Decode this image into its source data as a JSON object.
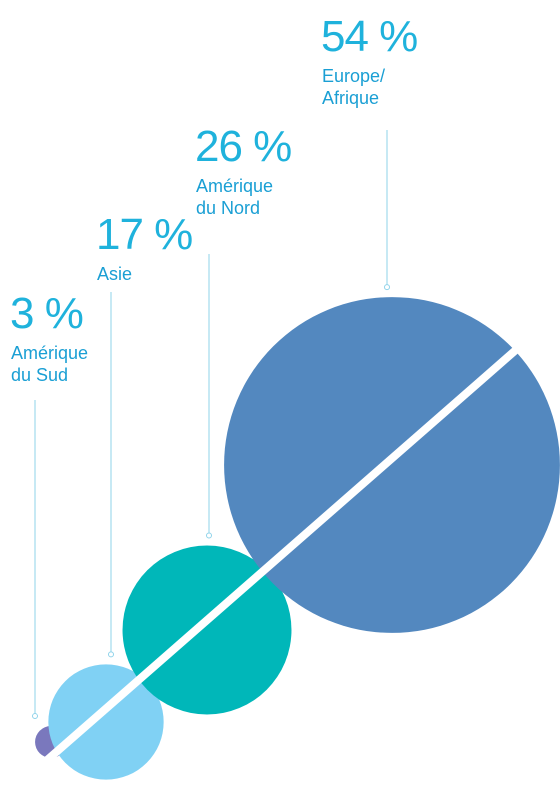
{
  "chart_data": {
    "type": "bubble",
    "categories": [
      "Amérique\ndu Sud",
      "Asie",
      "Amérique\ndu Nord",
      "Europe/\nAfrique"
    ],
    "values": [
      3,
      17,
      26,
      54
    ],
    "value_labels": [
      "3 %",
      "17 %",
      "26 %",
      "54 %"
    ],
    "colors": [
      "#7a78bd",
      "#80d1f4",
      "#00b7b9",
      "#5388bf"
    ]
  }
}
